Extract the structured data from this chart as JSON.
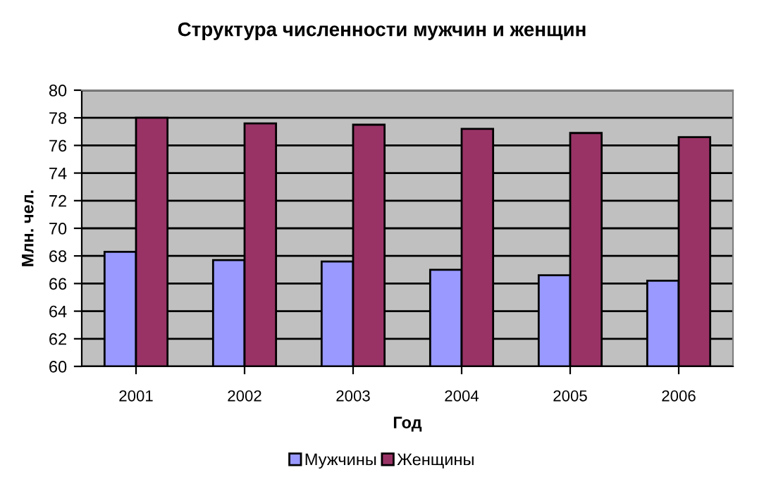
{
  "chart_data": {
    "type": "bar",
    "title": "Структура численности мужчин и женщин",
    "xlabel": "Год",
    "ylabel": "Млн. чел.",
    "categories": [
      "2001",
      "2002",
      "2003",
      "2004",
      "2005",
      "2006"
    ],
    "series": [
      {
        "name": "Мужчины",
        "color": "#9999ff",
        "values": [
          68.3,
          67.7,
          67.6,
          67.0,
          66.6,
          66.2
        ]
      },
      {
        "name": "Женщины",
        "color": "#993366",
        "values": [
          78.0,
          77.6,
          77.5,
          77.2,
          76.9,
          76.6
        ]
      }
    ],
    "ylim": [
      60,
      80
    ],
    "yticks": [
      60,
      62,
      64,
      66,
      68,
      70,
      72,
      74,
      76,
      78,
      80
    ],
    "grid": "y",
    "legend": "bottom"
  }
}
